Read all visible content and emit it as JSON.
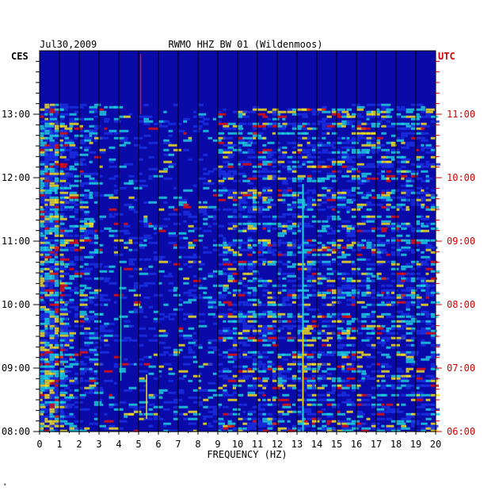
{
  "chart_data": {
    "type": "heatmap",
    "date": "Jul30,2009",
    "title": "RWMO HHZ BW 01 (Wildenmoos)",
    "left_timezone": "CES",
    "right_timezone": "UTC",
    "xlabel": "FREQUENCY (HZ)",
    "xlim": [
      0,
      20
    ],
    "x_ticks": [
      "0",
      "1",
      "2",
      "3",
      "4",
      "5",
      "6",
      "7",
      "8",
      "9",
      "10",
      "11",
      "12",
      "13",
      "14",
      "15",
      "16",
      "17",
      "18",
      "19",
      "20"
    ],
    "ylim_left": [
      "08:00",
      "14:00"
    ],
    "y_ticks_left": [
      "13:00",
      "12:00",
      "11:00",
      "10:00",
      "09:00",
      "08:00"
    ],
    "y_ticks_right": [
      "11:00",
      "10:00",
      "09:00",
      "08:00",
      "07:00",
      "06:00"
    ],
    "data_start_time_left": "13:10",
    "noise_bands": [
      {
        "description": "strong low-frequency energy",
        "freq_range_hz": [
          0,
          1.2
        ],
        "intensity": "high"
      },
      {
        "description": "persistent narrow line",
        "freq_hz": 13.3,
        "intensity": "high"
      },
      {
        "description": "narrow line",
        "freq_hz": 4.1,
        "intensity": "medium"
      },
      {
        "description": "narrow line near 5 Hz (pre-13:10 only)",
        "freq_hz": 5.1,
        "intensity": "high"
      },
      {
        "description": "broadband daytime noise",
        "freq_range_hz": [
          9,
          20
        ],
        "intensity": "medium-high"
      }
    ],
    "colors": {
      "background": "#0a0aa8",
      "low": "#1a2fe0",
      "mid": "#1fd0e0",
      "high": "#f0e020",
      "peak": "#e01010"
    }
  }
}
